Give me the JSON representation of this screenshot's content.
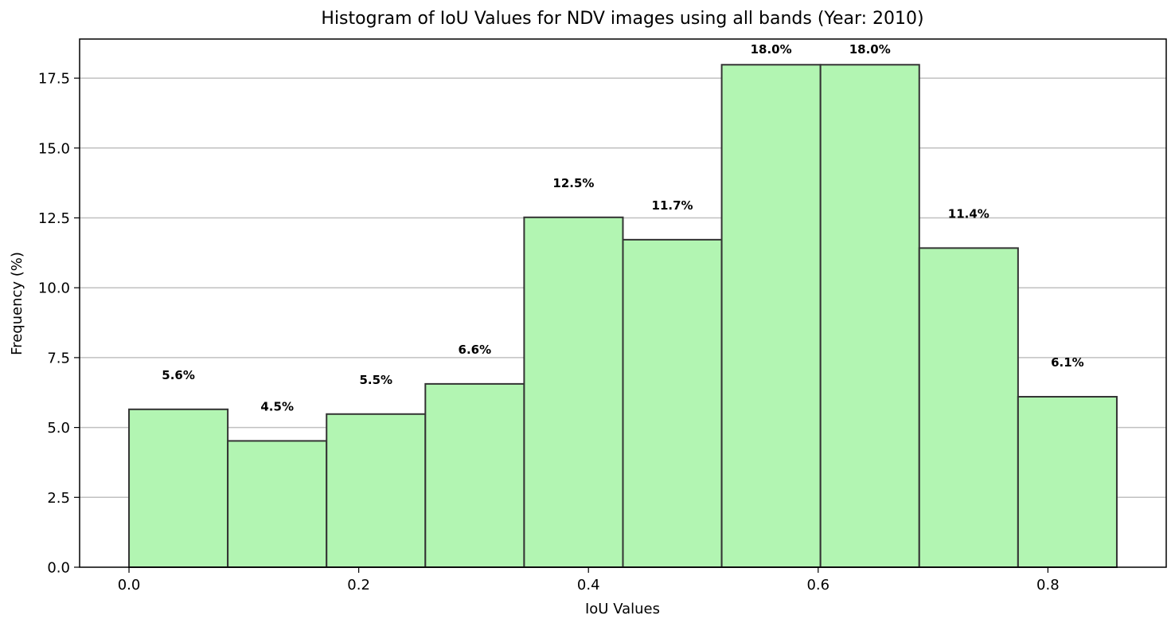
{
  "chart_data": {
    "type": "bar",
    "title": "Histogram of IoU Values for NDV images using all bands (Year: 2010)",
    "xlabel": "IoU Values",
    "ylabel": "Frequency (%)",
    "bin_edges": [
      0.0,
      0.086,
      0.172,
      0.258,
      0.344,
      0.43,
      0.516,
      0.602,
      0.688,
      0.774,
      0.86
    ],
    "values": [
      5.65,
      4.52,
      5.48,
      6.56,
      12.52,
      11.72,
      17.98,
      17.98,
      11.42,
      6.1
    ],
    "labels": [
      "5.6%",
      "4.5%",
      "5.5%",
      "6.6%",
      "12.5%",
      "11.7%",
      "18.0%",
      "18.0%",
      "11.4%",
      "6.1%"
    ],
    "xlim": [
      -0.043,
      0.903
    ],
    "ylim": [
      0,
      18.9
    ],
    "xticks": [
      0.0,
      0.2,
      0.4,
      0.6,
      0.8
    ],
    "xtick_labels": [
      "0.0",
      "0.2",
      "0.4",
      "0.6",
      "0.8"
    ],
    "yticks": [
      0,
      2.5,
      5,
      7.5,
      10,
      12.5,
      15,
      17.5
    ],
    "ytick_labels": [
      "0.0",
      "2.5",
      "5.0",
      "7.5",
      "10.0",
      "12.5",
      "15.0",
      "17.5"
    ],
    "grid": "y",
    "bar_color": "#b2f5b2",
    "edge_color": "#333333",
    "grid_color": "#c0c0c0"
  }
}
